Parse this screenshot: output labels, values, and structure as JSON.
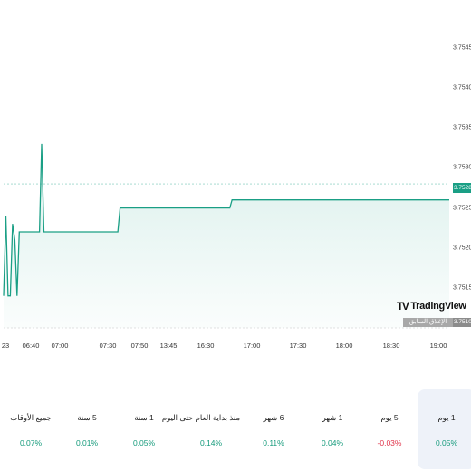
{
  "chart_data": {
    "type": "area",
    "y_ticks": [
      "3.754500",
      "3.754000",
      "3.753500",
      "3.753000",
      "3.752500",
      "3.752000",
      "3.751500"
    ],
    "x_ticks": [
      "23",
      "06:40",
      "07:00",
      "07:30",
      "07:50",
      "13:45",
      "16:30",
      "17:00",
      "17:30",
      "18:00",
      "18:30",
      "19:00"
    ],
    "ylim": [
      3.751,
      3.7551
    ],
    "grid": false,
    "series": [
      {
        "color": "#1a9f85",
        "values": [
          3.7514,
          3.7524,
          3.7514,
          3.7514,
          3.7523,
          3.7521,
          3.7514,
          3.7522,
          3.7522,
          3.7522,
          3.7522,
          3.7522,
          3.7522,
          3.7522,
          3.7522,
          3.7522,
          3.7522,
          3.7533,
          3.7522,
          3.7522,
          3.7522,
          3.7522,
          3.7522,
          3.7522,
          3.7522,
          3.7522,
          3.7522,
          3.7522,
          3.7522,
          3.7522,
          3.7522,
          3.7522,
          3.7522,
          3.7522,
          3.7522,
          3.7522,
          3.7522,
          3.7522,
          3.7522,
          3.7522,
          3.7522,
          3.7522,
          3.7522,
          3.7522,
          3.7522,
          3.7522,
          3.7522,
          3.7522,
          3.7522,
          3.7522,
          3.7522,
          3.7522,
          3.7525,
          3.7525,
          3.7525,
          3.7525,
          3.7525,
          3.7525,
          3.7525,
          3.7525,
          3.7525,
          3.7525,
          3.7525,
          3.7525,
          3.7525,
          3.7525,
          3.7525,
          3.7525,
          3.7525,
          3.7525,
          3.7525,
          3.7525,
          3.7525,
          3.7525,
          3.7525,
          3.7525,
          3.7525,
          3.7525,
          3.7525,
          3.7525,
          3.7525,
          3.7525,
          3.7525,
          3.7525,
          3.7525,
          3.7525,
          3.7525,
          3.7525,
          3.7525,
          3.7525,
          3.7525,
          3.7525,
          3.7525,
          3.7525,
          3.7525,
          3.7525,
          3.7525,
          3.7525,
          3.7525,
          3.7525,
          3.7525,
          3.7525,
          3.7526,
          3.7526,
          3.7526,
          3.7526,
          3.7526,
          3.7526,
          3.7526,
          3.7526,
          3.7526,
          3.7526,
          3.7526,
          3.7526,
          3.7526,
          3.7526,
          3.7526,
          3.7526,
          3.7526,
          3.7526,
          3.7526,
          3.7526,
          3.7526,
          3.7526,
          3.7526,
          3.7526,
          3.7526,
          3.7526,
          3.7526,
          3.7526,
          3.7526,
          3.7526,
          3.7526,
          3.7526,
          3.7526,
          3.7526,
          3.7526,
          3.7526,
          3.7526,
          3.7526,
          3.7526,
          3.7526,
          3.7526,
          3.7526,
          3.7526,
          3.7526,
          3.7526,
          3.7526,
          3.7526,
          3.7526,
          3.7526,
          3.7526,
          3.7526,
          3.7526,
          3.7526,
          3.7526,
          3.7526,
          3.7526,
          3.7526,
          3.7526,
          3.7526,
          3.7526,
          3.7526,
          3.7526,
          3.7526,
          3.7526,
          3.7526,
          3.7526,
          3.7526,
          3.7526,
          3.7526,
          3.7526,
          3.7526,
          3.7526,
          3.7526,
          3.7526,
          3.7526,
          3.7526,
          3.7526,
          3.7526,
          3.7526,
          3.7526,
          3.7526,
          3.7526,
          3.7526,
          3.7526,
          3.7526,
          3.7526,
          3.7526,
          3.7526,
          3.7526,
          3.7526,
          3.7526,
          3.7526,
          3.7526,
          3.7526,
          3.7526,
          3.7526,
          3.7526,
          3.7526
        ]
      }
    ]
  },
  "price_labels": {
    "current": "3.752800",
    "previous": "3.751000",
    "previous_caption": "الإغلاق السابق"
  },
  "logo": {
    "mark": "TV",
    "text": "TradingView"
  },
  "periods": [
    {
      "label": "1 يوم",
      "value": "0.05%",
      "trend": "pos",
      "active": true
    },
    {
      "label": "5 يوم",
      "value": "-0.03%",
      "trend": "neg",
      "active": false
    },
    {
      "label": "1 شهر",
      "value": "0.04%",
      "trend": "pos",
      "active": false
    },
    {
      "label": "6 شهر",
      "value": "0.11%",
      "trend": "pos",
      "active": false
    },
    {
      "label": "منذ بداية العام حتى اليوم",
      "value": "0.14%",
      "trend": "pos",
      "active": false
    },
    {
      "label": "1 سنة",
      "value": "0.05%",
      "trend": "pos",
      "active": false
    },
    {
      "label": "5 سنة",
      "value": "0.01%",
      "trend": "pos",
      "active": false
    },
    {
      "label": "جميع الأوقات",
      "value": "0.07%",
      "trend": "pos",
      "active": false
    }
  ]
}
